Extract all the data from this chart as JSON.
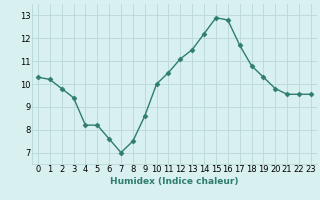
{
  "x": [
    0,
    1,
    2,
    3,
    4,
    5,
    6,
    7,
    8,
    9,
    10,
    11,
    12,
    13,
    14,
    15,
    16,
    17,
    18,
    19,
    20,
    21,
    22,
    23
  ],
  "y": [
    10.3,
    10.2,
    9.8,
    9.4,
    8.2,
    8.2,
    7.6,
    7.0,
    7.5,
    8.6,
    10.0,
    10.5,
    11.1,
    11.5,
    12.2,
    12.9,
    12.8,
    11.7,
    10.8,
    10.3,
    9.8,
    9.55,
    9.55,
    9.55
  ],
  "line_color": "#2e7d6e",
  "marker": "D",
  "markersize": 2.5,
  "linewidth": 1.0,
  "bg_color": "#d9f0f0",
  "grid_color": "#b8d8d8",
  "xlabel": "Humidex (Indice chaleur)",
  "ylim": [
    6.5,
    13.5
  ],
  "xlim": [
    -0.5,
    23.5
  ],
  "yticks": [
    7,
    8,
    9,
    10,
    11,
    12,
    13
  ],
  "xticks": [
    0,
    1,
    2,
    3,
    4,
    5,
    6,
    7,
    8,
    9,
    10,
    11,
    12,
    13,
    14,
    15,
    16,
    17,
    18,
    19,
    20,
    21,
    22,
    23
  ],
  "xlabel_fontsize": 6.5,
  "tick_fontsize": 6.0
}
